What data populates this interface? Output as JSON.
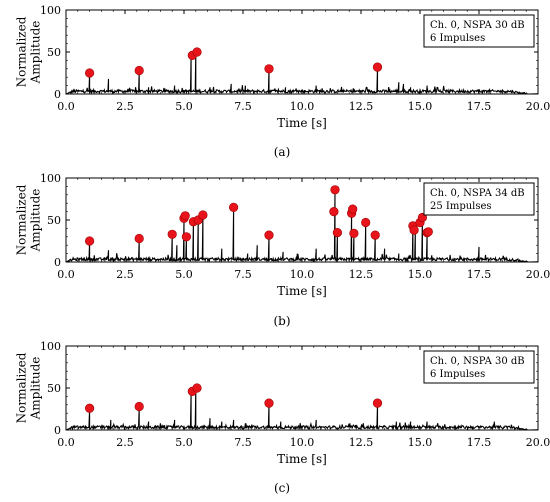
{
  "chart_data": [
    {
      "type": "line",
      "caption": "(a)",
      "xlabel": "Time [s]",
      "ylabel": [
        "Normalized",
        "Amplitude"
      ],
      "xlim": [
        0,
        20
      ],
      "ylim": [
        0,
        100
      ],
      "xticks": [
        "0.0",
        "2.5",
        "5.0",
        "7.5",
        "10.0",
        "12.5",
        "15.0",
        "17.5",
        "20.0"
      ],
      "yticks": [
        "0",
        "50",
        "100"
      ],
      "legend": [
        "Ch. 0, NSPA 30 dB",
        "6 Impulses"
      ],
      "legend_position": "top-right",
      "signal_end": 19.6,
      "signal_peaks": [
        [
          1.0,
          25
        ],
        [
          1.8,
          18
        ],
        [
          3.1,
          28
        ],
        [
          3.5,
          8
        ],
        [
          4.6,
          10
        ],
        [
          5.3,
          46
        ],
        [
          5.5,
          50
        ],
        [
          6.1,
          8
        ],
        [
          7.0,
          12
        ],
        [
          7.6,
          10
        ],
        [
          8.6,
          30
        ],
        [
          9.3,
          8
        ],
        [
          10.6,
          10
        ],
        [
          13.2,
          32
        ],
        [
          14.1,
          14
        ],
        [
          14.3,
          12
        ],
        [
          14.6,
          8
        ],
        [
          15.3,
          10
        ],
        [
          17.5,
          6
        ]
      ],
      "markers": [
        [
          1.0,
          25
        ],
        [
          3.1,
          28
        ],
        [
          5.35,
          46
        ],
        [
          5.55,
          50
        ],
        [
          8.6,
          30
        ],
        [
          13.2,
          32
        ]
      ],
      "marker_color": "#e8141b"
    },
    {
      "type": "line",
      "caption": "(b)",
      "xlabel": "Time [s]",
      "ylabel": [
        "Normalized",
        "Amplitude"
      ],
      "xlim": [
        0,
        20
      ],
      "ylim": [
        0,
        100
      ],
      "xticks": [
        "0.0",
        "2.5",
        "5.0",
        "7.5",
        "10.0",
        "12.5",
        "15.0",
        "17.5",
        "20.0"
      ],
      "yticks": [
        "0",
        "50",
        "100"
      ],
      "legend": [
        "Ch. 0, NSPA 34 dB",
        "25 Impulses"
      ],
      "legend_position": "top-right",
      "signal_end": 19.6,
      "signal_peaks": [
        [
          1.0,
          25
        ],
        [
          1.8,
          14
        ],
        [
          3.1,
          28
        ],
        [
          4.5,
          33
        ],
        [
          4.7,
          20
        ],
        [
          5.0,
          52
        ],
        [
          5.1,
          30
        ],
        [
          5.4,
          48
        ],
        [
          5.6,
          50
        ],
        [
          5.8,
          56
        ],
        [
          6.6,
          16
        ],
        [
          7.1,
          65
        ],
        [
          7.7,
          10
        ],
        [
          8.1,
          20
        ],
        [
          8.6,
          32
        ],
        [
          9.2,
          12
        ],
        [
          9.8,
          10
        ],
        [
          10.6,
          16
        ],
        [
          11.4,
          86
        ],
        [
          11.5,
          35
        ],
        [
          12.1,
          63
        ],
        [
          12.2,
          34
        ],
        [
          12.7,
          47
        ],
        [
          13.1,
          32
        ],
        [
          13.5,
          16
        ],
        [
          14.1,
          10
        ],
        [
          14.7,
          43
        ],
        [
          14.8,
          38
        ],
        [
          15.1,
          53
        ],
        [
          15.3,
          35
        ],
        [
          15.5,
          8
        ],
        [
          17.5,
          18
        ]
      ],
      "markers": [
        [
          1.0,
          25
        ],
        [
          3.1,
          28
        ],
        [
          4.5,
          33
        ],
        [
          5.0,
          52
        ],
        [
          5.05,
          55
        ],
        [
          5.1,
          30
        ],
        [
          5.4,
          48
        ],
        [
          5.6,
          50
        ],
        [
          5.8,
          56
        ],
        [
          7.1,
          65
        ],
        [
          8.6,
          32
        ],
        [
          11.35,
          60
        ],
        [
          11.4,
          86
        ],
        [
          11.5,
          35
        ],
        [
          12.1,
          58
        ],
        [
          12.15,
          63
        ],
        [
          12.2,
          34
        ],
        [
          12.7,
          47
        ],
        [
          13.1,
          32
        ],
        [
          14.7,
          43
        ],
        [
          14.75,
          38
        ],
        [
          15.0,
          47
        ],
        [
          15.1,
          53
        ],
        [
          15.3,
          35
        ],
        [
          15.35,
          36
        ]
      ],
      "marker_color": "#e8141b"
    },
    {
      "type": "line",
      "caption": "(c)",
      "xlabel": "Time [s]",
      "ylabel": [
        "Normalized",
        "Amplitude"
      ],
      "xlim": [
        0,
        20
      ],
      "ylim": [
        0,
        100
      ],
      "xticks": [
        "0.0",
        "2.5",
        "5.0",
        "7.5",
        "10.0",
        "12.5",
        "15.0",
        "17.5",
        "20.0"
      ],
      "yticks": [
        "0",
        "50",
        "100"
      ],
      "legend": [
        "Ch. 0, NSPA 30 dB",
        "6 Impulses"
      ],
      "legend_position": "top-right",
      "signal_end": 19.6,
      "signal_peaks": [
        [
          1.0,
          26
        ],
        [
          1.9,
          12
        ],
        [
          3.1,
          28
        ],
        [
          3.5,
          10
        ],
        [
          4.0,
          8
        ],
        [
          4.6,
          12
        ],
        [
          5.3,
          46
        ],
        [
          5.5,
          50
        ],
        [
          6.1,
          14
        ],
        [
          6.6,
          10
        ],
        [
          7.1,
          12
        ],
        [
          7.6,
          8
        ],
        [
          8.6,
          32
        ],
        [
          9.1,
          10
        ],
        [
          10.6,
          12
        ],
        [
          12.6,
          8
        ],
        [
          13.2,
          32
        ],
        [
          14.0,
          10
        ],
        [
          14.6,
          10
        ],
        [
          15.3,
          10
        ]
      ],
      "markers": [
        [
          1.0,
          26
        ],
        [
          3.1,
          28
        ],
        [
          5.35,
          46
        ],
        [
          5.55,
          50
        ],
        [
          8.6,
          32
        ],
        [
          13.2,
          32
        ]
      ],
      "marker_color": "#e8141b"
    }
  ]
}
